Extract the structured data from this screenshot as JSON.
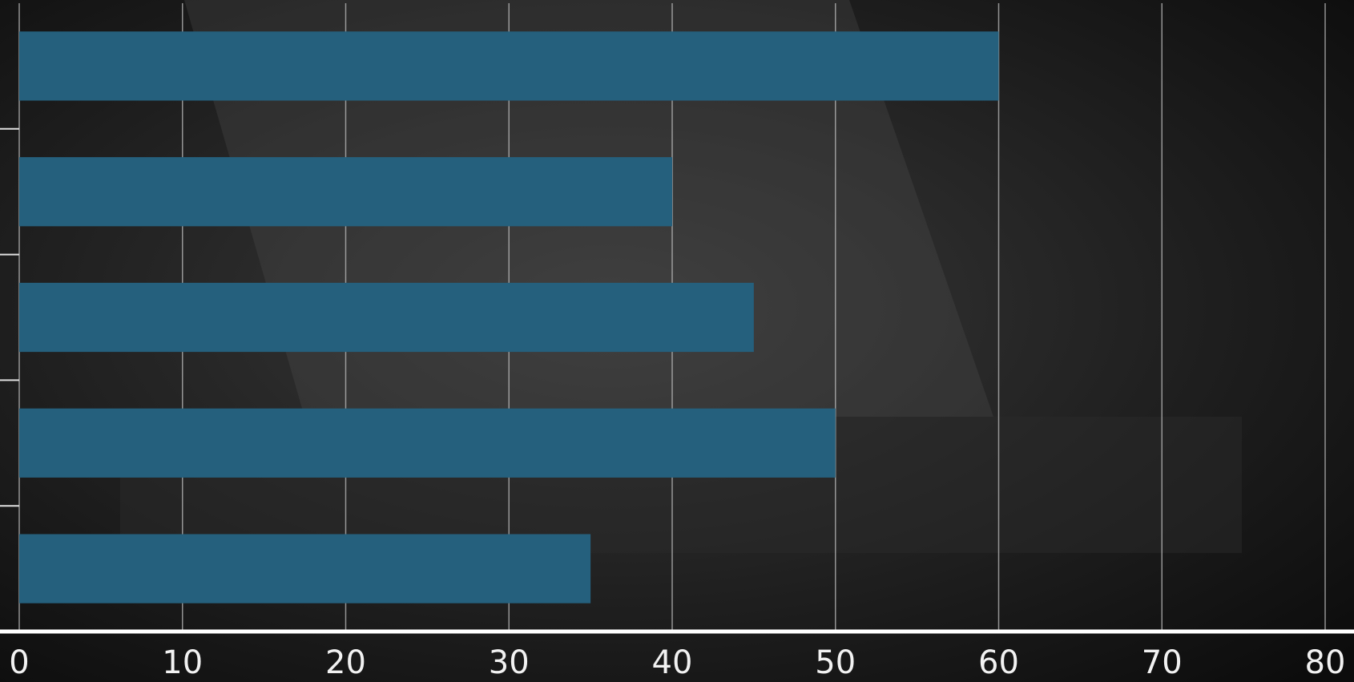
{
  "chart_data": {
    "type": "bar",
    "orientation": "horizontal",
    "categories": [
      null,
      null,
      null,
      null,
      null
    ],
    "values": [
      60,
      40,
      45,
      50,
      35
    ],
    "color": "#25607d",
    "xlim": [
      0,
      80
    ],
    "xticks": [
      0,
      10,
      20,
      30,
      40,
      50,
      60,
      70,
      80
    ],
    "grid": true
  }
}
